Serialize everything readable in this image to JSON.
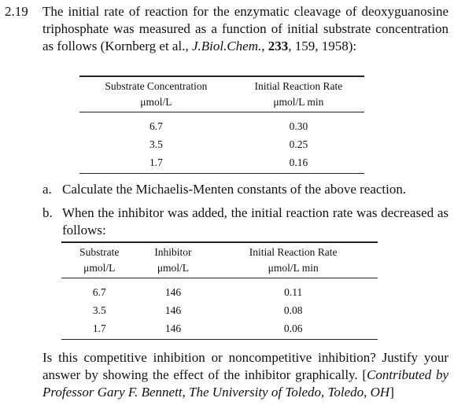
{
  "problem": {
    "number": "2.19",
    "text_before": "The initial rate of reaction for the enzymatic cleavage of deoxyguanosine triphosphate was measured as a function of initial substrate concentration as follows (Kornberg et al., ",
    "journal": "J.Biol.Chem.",
    "text_mid": ", ",
    "volume": "233",
    "text_after": ", 159, 1958):"
  },
  "table1": {
    "headers": [
      {
        "line1": "Substrate Concentration",
        "line2": "μmol/L"
      },
      {
        "line1": "Initial Reaction Rate",
        "line2": "μmol/L min"
      }
    ],
    "rows": [
      [
        "6.7",
        "0.30"
      ],
      [
        "3.5",
        "0.25"
      ],
      [
        "1.7",
        "0.16"
      ]
    ]
  },
  "part_a": {
    "label": "a.",
    "text": "Calculate the Michaelis-Menten constants of the above reaction."
  },
  "part_b": {
    "label": "b.",
    "text": "When the inhibitor was added, the initial reaction rate was decreased as follows:"
  },
  "table2": {
    "headers": [
      {
        "line1": "Substrate",
        "line2": "μmol/L"
      },
      {
        "line1": "Inhibitor",
        "line2": "μmol/L"
      },
      {
        "line1": "Initial Reaction Rate",
        "line2": "μmol/L min"
      }
    ],
    "rows": [
      [
        "6.7",
        "146",
        "0.11"
      ],
      [
        "3.5",
        "146",
        "0.08"
      ],
      [
        "1.7",
        "146",
        "0.06"
      ]
    ]
  },
  "closing": {
    "text": "Is this competitive inhibition or noncompetitive inhibition? Justify your answer by showing the effect of the inhibitor graphically. ",
    "bracket_open": "[",
    "credit": "Contributed by Professor Gary F. Bennett, The University of Toledo, Toledo, OH",
    "bracket_close": "]"
  }
}
